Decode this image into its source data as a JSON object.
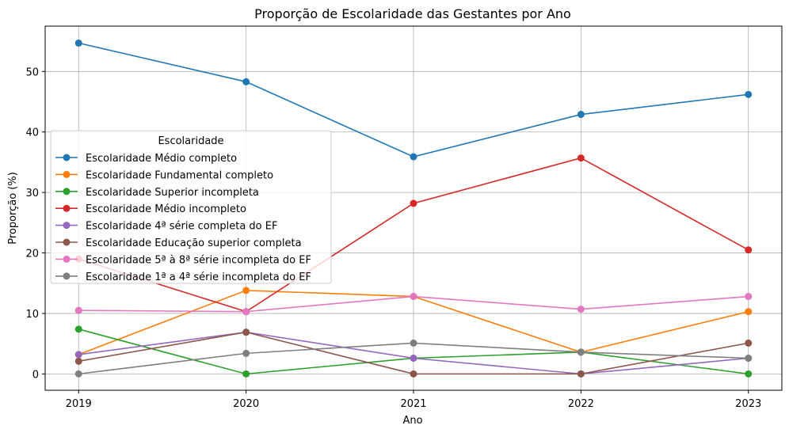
{
  "chart_data": {
    "type": "line",
    "title": "Proporção de Escolaridade das Gestantes por Ano",
    "xlabel": "Ano",
    "ylabel": "Proporção (%)",
    "x": [
      2019,
      2020,
      2021,
      2022,
      2023
    ],
    "x_tick_labels": [
      "2019",
      "2020",
      "2021",
      "2022",
      "2023"
    ],
    "y_ticks": [
      0,
      10,
      20,
      30,
      40,
      50
    ],
    "y_tick_labels": [
      "0",
      "10",
      "20",
      "30",
      "40",
      "50"
    ],
    "ylim": [
      -2.7,
      57.5
    ],
    "xlim": [
      2018.8,
      2023.2
    ],
    "grid": true,
    "legend": {
      "title": "Escolaridade",
      "placement": "center-left"
    },
    "series": [
      {
        "name": "Escolaridade Médio completo",
        "color": "#1f77b4",
        "values": [
          54.7,
          48.3,
          35.9,
          42.9,
          46.2
        ]
      },
      {
        "name": "Escolaridade Fundamental completo",
        "color": "#ff7f0e",
        "values": [
          3.2,
          13.8,
          12.8,
          3.6,
          10.3
        ]
      },
      {
        "name": "Escolaridade Superior incompleta",
        "color": "#2ca02c",
        "values": [
          7.4,
          0.0,
          2.6,
          3.6,
          0.0
        ]
      },
      {
        "name": "Escolaridade Médio incompleto",
        "color": "#d62728",
        "values": [
          19.0,
          10.3,
          28.2,
          35.7,
          20.5
        ]
      },
      {
        "name": "Escolaridade 4ª série completa do EF",
        "color": "#9467bd",
        "values": [
          3.2,
          6.9,
          2.6,
          0.0,
          2.6
        ]
      },
      {
        "name": "Escolaridade Educação superior completa",
        "color": "#8c564b",
        "values": [
          2.1,
          6.9,
          0.0,
          0.0,
          5.1
        ]
      },
      {
        "name": "Escolaridade 5ª à 8ª série incompleta do EF",
        "color": "#e377c2",
        "values": [
          10.5,
          10.3,
          12.8,
          10.7,
          12.8
        ]
      },
      {
        "name": "Escolaridade 1ª a 4ª série incompleta do EF",
        "color": "#7f7f7f",
        "values": [
          0.0,
          3.4,
          5.1,
          3.6,
          2.6
        ]
      }
    ]
  }
}
